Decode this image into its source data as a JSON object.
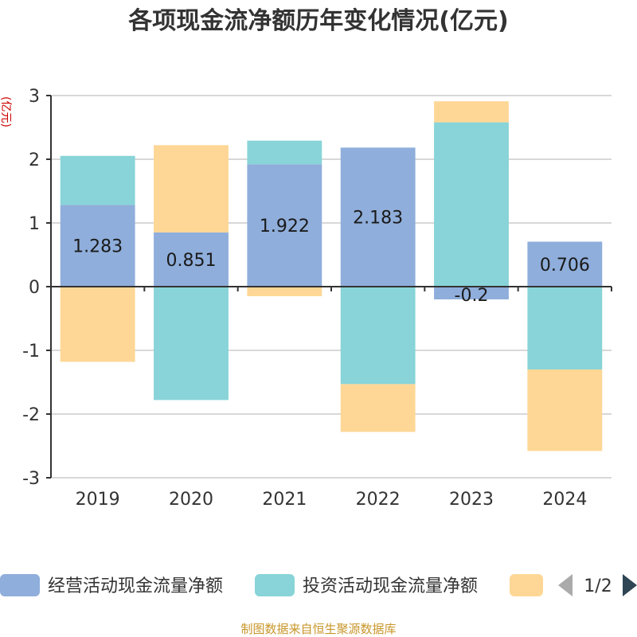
{
  "chart_data": {
    "type": "bar",
    "stacked": true,
    "title": "各项现金流净额历年变化情况(亿元)",
    "ylabel": "(亿元)",
    "categories": [
      "2019",
      "2020",
      "2021",
      "2022",
      "2023",
      "2024"
    ],
    "ylim": [
      -3,
      3
    ],
    "yticks": [
      3,
      2,
      1,
      0,
      -1,
      -2,
      -3
    ],
    "grid": true,
    "legend_position": "bottom",
    "series": [
      {
        "name": "经营活动现金流量净额",
        "color": "#8faedb",
        "values": [
          1.283,
          0.851,
          1.922,
          2.183,
          -0.2,
          0.706
        ],
        "labels": [
          "1.283",
          "0.851",
          "1.922",
          "2.183",
          "-0.2",
          "0.706"
        ]
      },
      {
        "name": "投资活动现金流量净额",
        "color": "#88d4d8",
        "values": [
          0.77,
          -1.78,
          0.37,
          -1.53,
          2.58,
          -1.3
        ]
      },
      {
        "name": "",
        "color": "#fed796",
        "values": [
          -1.18,
          1.37,
          -0.15,
          -0.75,
          0.33,
          -1.28
        ]
      }
    ],
    "legend_page": "1/2",
    "source": "制图数据来自恒生聚源数据库"
  }
}
